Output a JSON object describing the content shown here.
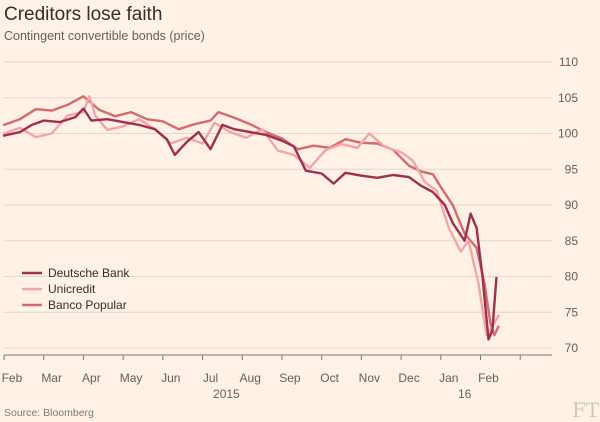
{
  "chart_data": {
    "type": "line",
    "title": "Creditors lose faith",
    "subtitle": "Contingent convertible bonds (price)",
    "source": "Source: Bloomberg",
    "brand": "FT",
    "ylabel": "price",
    "ylim": [
      70,
      110
    ],
    "yticks": [
      70,
      75,
      80,
      85,
      90,
      95,
      100,
      105,
      110
    ],
    "xlim": [
      0,
      13.8
    ],
    "xticks": [
      {
        "label": "Feb",
        "pos": 0.2
      },
      {
        "label": "Mar",
        "pos": 1.2
      },
      {
        "label": "Apr",
        "pos": 2.2
      },
      {
        "label": "May",
        "pos": 3.2
      },
      {
        "label": "Jun",
        "pos": 4.2
      },
      {
        "label": "Jul",
        "pos": 5.2
      },
      {
        "label": "Aug",
        "pos": 6.2
      },
      {
        "label": "Sep",
        "pos": 7.2
      },
      {
        "label": "Oct",
        "pos": 8.2
      },
      {
        "label": "Nov",
        "pos": 9.2
      },
      {
        "label": "Dec",
        "pos": 10.2
      },
      {
        "label": "Jan",
        "pos": 11.2
      },
      {
        "label": "Feb",
        "pos": 12.2
      }
    ],
    "year_labels": [
      {
        "label": "2015",
        "pos": 5.6
      },
      {
        "label": "16",
        "pos": 11.6
      }
    ],
    "legend": [
      "Deutsche Bank",
      "Unicredit",
      "Banco Popular"
    ],
    "series": [
      {
        "name": "Deutsche Bank",
        "color": "#9e2f50",
        "points": [
          [
            0,
            99.7
          ],
          [
            0.4,
            100.2
          ],
          [
            0.7,
            101.2
          ],
          [
            1.0,
            101.8
          ],
          [
            1.4,
            101.6
          ],
          [
            1.8,
            102.3
          ],
          [
            2.0,
            103.5
          ],
          [
            2.2,
            101.8
          ],
          [
            2.6,
            102.0
          ],
          [
            3.0,
            101.6
          ],
          [
            3.4,
            101.2
          ],
          [
            3.8,
            100.6
          ],
          [
            4.1,
            99.2
          ],
          [
            4.3,
            97.0
          ],
          [
            4.6,
            98.8
          ],
          [
            4.9,
            100.2
          ],
          [
            5.2,
            97.8
          ],
          [
            5.5,
            101.2
          ],
          [
            5.8,
            100.6
          ],
          [
            6.2,
            100.2
          ],
          [
            6.6,
            99.8
          ],
          [
            7.0,
            99.0
          ],
          [
            7.3,
            98.2
          ],
          [
            7.6,
            94.8
          ],
          [
            8.0,
            94.4
          ],
          [
            8.3,
            93.0
          ],
          [
            8.6,
            94.5
          ],
          [
            9.0,
            94.1
          ],
          [
            9.4,
            93.8
          ],
          [
            9.8,
            94.2
          ],
          [
            10.2,
            93.9
          ],
          [
            10.5,
            92.7
          ],
          [
            10.8,
            91.8
          ],
          [
            11.1,
            90.0
          ],
          [
            11.3,
            87.5
          ],
          [
            11.6,
            85.0
          ],
          [
            11.75,
            88.8
          ],
          [
            11.9,
            86.8
          ],
          [
            12.05,
            80.0
          ],
          [
            12.2,
            71.2
          ],
          [
            12.3,
            72.5
          ],
          [
            12.4,
            79.8
          ]
        ]
      },
      {
        "name": "Unicredit",
        "color": "#f3a5a7",
        "points": [
          [
            0,
            100.0
          ],
          [
            0.4,
            100.8
          ],
          [
            0.8,
            99.5
          ],
          [
            1.2,
            100.0
          ],
          [
            1.6,
            102.5
          ],
          [
            2.0,
            103.0
          ],
          [
            2.15,
            105.2
          ],
          [
            2.3,
            102.5
          ],
          [
            2.6,
            100.5
          ],
          [
            3.0,
            101.0
          ],
          [
            3.4,
            102.0
          ],
          [
            3.8,
            100.6
          ],
          [
            4.2,
            98.6
          ],
          [
            4.6,
            99.4
          ],
          [
            5.0,
            98.6
          ],
          [
            5.3,
            101.5
          ],
          [
            5.7,
            100.2
          ],
          [
            6.1,
            99.4
          ],
          [
            6.5,
            100.6
          ],
          [
            6.9,
            97.6
          ],
          [
            7.3,
            97.0
          ],
          [
            7.7,
            95.2
          ],
          [
            8.1,
            97.7
          ],
          [
            8.5,
            98.5
          ],
          [
            8.9,
            98.0
          ],
          [
            9.2,
            100.0
          ],
          [
            9.6,
            98.1
          ],
          [
            10.0,
            97.4
          ],
          [
            10.3,
            96.2
          ],
          [
            10.6,
            93.2
          ],
          [
            10.9,
            92.0
          ],
          [
            11.2,
            86.8
          ],
          [
            11.5,
            83.5
          ],
          [
            11.7,
            85.0
          ],
          [
            11.95,
            79.0
          ],
          [
            12.15,
            71.8
          ],
          [
            12.3,
            73.0
          ],
          [
            12.45,
            74.5
          ]
        ]
      },
      {
        "name": "Banco Popular",
        "color": "#d66a6c",
        "points": [
          [
            0,
            101.2
          ],
          [
            0.4,
            102.0
          ],
          [
            0.8,
            103.4
          ],
          [
            1.2,
            103.2
          ],
          [
            1.6,
            104.0
          ],
          [
            2.0,
            105.2
          ],
          [
            2.4,
            103.3
          ],
          [
            2.8,
            102.4
          ],
          [
            3.2,
            103.0
          ],
          [
            3.6,
            102.0
          ],
          [
            4.0,
            101.7
          ],
          [
            4.4,
            100.6
          ],
          [
            4.8,
            101.3
          ],
          [
            5.2,
            101.8
          ],
          [
            5.4,
            103.0
          ],
          [
            5.8,
            102.2
          ],
          [
            6.2,
            101.3
          ],
          [
            6.6,
            100.2
          ],
          [
            7.0,
            99.3
          ],
          [
            7.4,
            97.8
          ],
          [
            7.8,
            98.3
          ],
          [
            8.2,
            98.0
          ],
          [
            8.6,
            99.2
          ],
          [
            9.0,
            98.7
          ],
          [
            9.4,
            98.6
          ],
          [
            9.8,
            97.7
          ],
          [
            10.2,
            95.5
          ],
          [
            10.5,
            94.7
          ],
          [
            10.8,
            94.3
          ],
          [
            11.0,
            92.5
          ],
          [
            11.3,
            90.0
          ],
          [
            11.6,
            86.0
          ],
          [
            11.9,
            84.0
          ],
          [
            12.1,
            79.0
          ],
          [
            12.25,
            73.5
          ],
          [
            12.35,
            71.8
          ],
          [
            12.45,
            73.0
          ]
        ]
      }
    ]
  }
}
